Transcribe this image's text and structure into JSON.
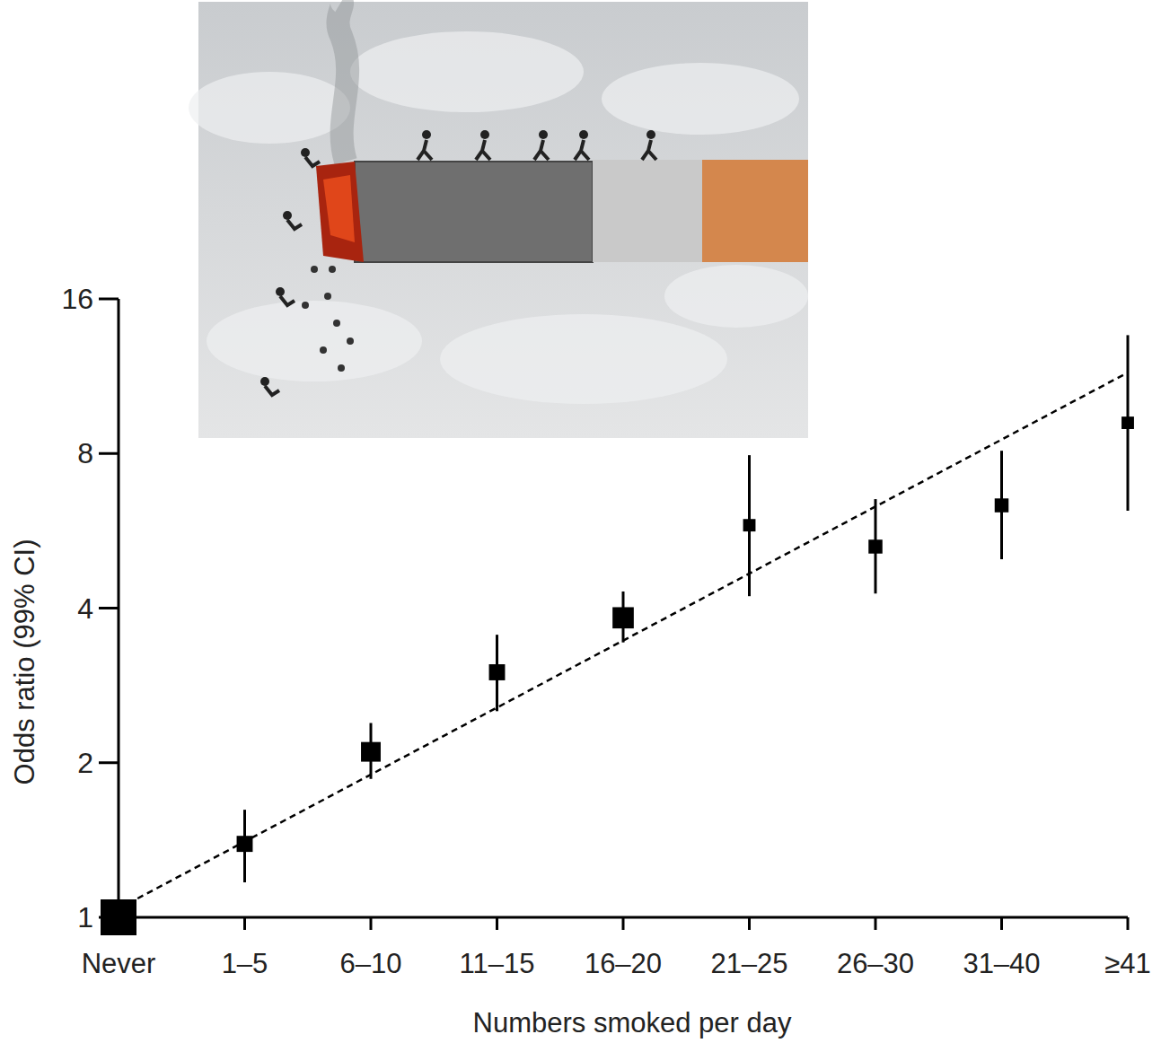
{
  "chart_data": {
    "type": "point",
    "x_label": "Numbers smoked per day",
    "y_label": "Odds ratio (99% CI)",
    "categories": [
      "Never",
      "1–5",
      "6–10",
      "11–15",
      "16–20",
      "21–25",
      "26–30",
      "31–40",
      "≥41"
    ],
    "values": [
      1,
      1.39,
      2.1,
      3.0,
      3.83,
      5.8,
      5.27,
      6.34,
      9.18
    ],
    "ci_low": [
      null,
      1.17,
      1.86,
      2.52,
      3.43,
      4.22,
      4.27,
      4.98,
      6.19
    ],
    "ci_high": [
      null,
      1.62,
      2.39,
      3.55,
      4.31,
      7.94,
      6.52,
      8.1,
      13.6
    ],
    "sizes": [
      100,
      20,
      30,
      20,
      35,
      12,
      15,
      15,
      12
    ],
    "trend": {
      "values": [
        1.04,
        11.5
      ],
      "line_style": "dashed"
    },
    "color": "#000000",
    "marker": "square",
    "log": "y",
    "ylim": [
      1,
      16
    ],
    "yticks": [
      1,
      2,
      4,
      8,
      16
    ],
    "grid": false
  }
}
